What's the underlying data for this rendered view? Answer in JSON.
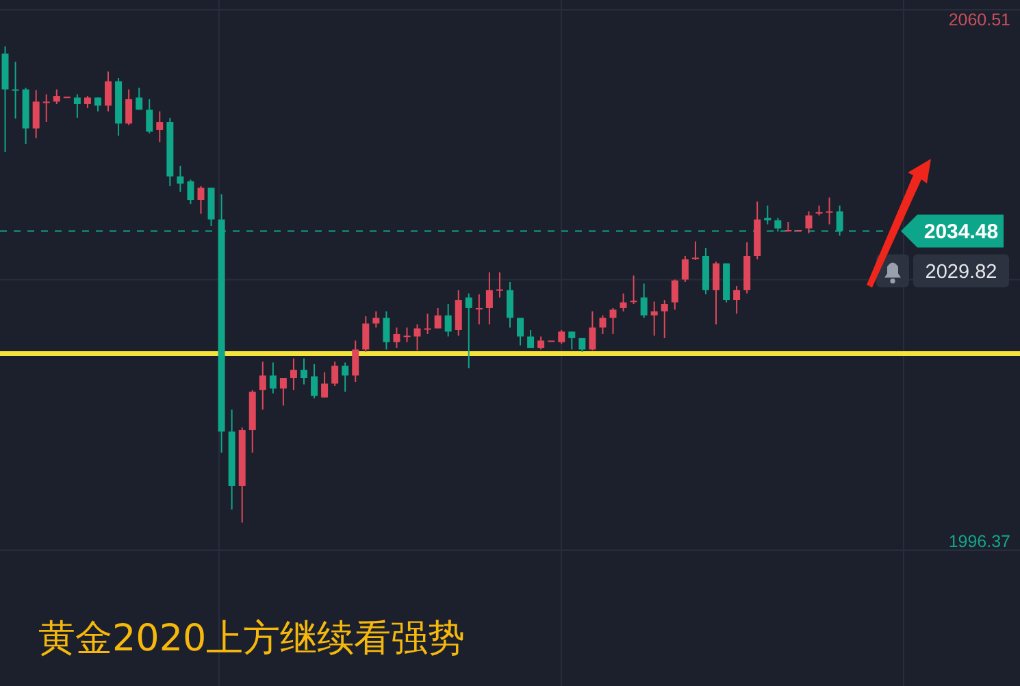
{
  "chart_data": {
    "type": "candlestick",
    "title": "黄金2020上方继续看强势",
    "categories": [
      null,
      null,
      null,
      null,
      null,
      null,
      null,
      null,
      null,
      null,
      null,
      null,
      null,
      null,
      null,
      null,
      null,
      null,
      null,
      null,
      null,
      null,
      null,
      null,
      null,
      null,
      null,
      null,
      null,
      null,
      null,
      null,
      null,
      null,
      null,
      null,
      null,
      null,
      null,
      null,
      null,
      null,
      null,
      null,
      null,
      null,
      null,
      null,
      null,
      null,
      null,
      null,
      null,
      null,
      null,
      null,
      null,
      null,
      null,
      null,
      null,
      null,
      null,
      null,
      null,
      null,
      null,
      null,
      null,
      null,
      null,
      null,
      null,
      null,
      null,
      null,
      null,
      null,
      null,
      null,
      null,
      null,
      null,
      null,
      null,
      null,
      null,
      null,
      null,
      null,
      null,
      null,
      null,
      null,
      null,
      null,
      null,
      null,
      null
    ],
    "ohlc": [
      [
        2056.3,
        2057.2,
        2044.2,
        2051.9
      ],
      [
        2051.9,
        2055.3,
        2048.3,
        2051.8
      ],
      [
        2051.9,
        2052.1,
        2045.2,
        2047.1
      ],
      [
        2047.1,
        2051.8,
        2045.9,
        2050.4
      ],
      [
        2050.3,
        2051.3,
        2047.9,
        2050.4
      ],
      [
        2050.4,
        2051.9,
        2050.1,
        2051.1
      ],
      [
        2051.0,
        2051.0,
        2051.0,
        2051.0
      ],
      [
        2050.9,
        2051.3,
        2048.4,
        2050.1
      ],
      [
        2050.1,
        2051.1,
        2049.6,
        2050.9
      ],
      [
        2050.9,
        2050.9,
        2049.2,
        2049.9
      ],
      [
        2049.9,
        2054.1,
        2049.2,
        2052.9
      ],
      [
        2052.9,
        2053.3,
        2046.2,
        2047.7
      ],
      [
        2047.7,
        2051.9,
        2047.5,
        2050.7
      ],
      [
        2050.9,
        2052.1,
        2049.4,
        2049.4
      ],
      [
        2049.4,
        2050.7,
        2046.5,
        2046.7
      ],
      [
        2046.9,
        2049.2,
        2045.4,
        2047.9
      ],
      [
        2047.9,
        2048.4,
        2040.0,
        2041.2
      ],
      [
        2041.2,
        2042.5,
        2039.3,
        2040.3
      ],
      [
        2040.6,
        2040.8,
        2037.8,
        2038.3
      ],
      [
        2038.3,
        2040.0,
        2036.6,
        2039.8
      ],
      [
        2039.8,
        2039.8,
        2035.1,
        2035.9
      ],
      [
        2035.9,
        2039.0,
        2007.2,
        2009.8
      ],
      [
        2009.8,
        2012.5,
        2000.2,
        2003.1
      ],
      [
        2003.1,
        2010.3,
        1998.6,
        2010.0
      ],
      [
        2010.0,
        2014.9,
        2007.2,
        2014.7
      ],
      [
        2014.9,
        2018.4,
        2012.5,
        2016.7
      ],
      [
        2016.7,
        2018.3,
        2014.5,
        2015.1
      ],
      [
        2015.1,
        2016.4,
        2013.0,
        2016.4
      ],
      [
        2016.4,
        2018.8,
        2014.9,
        2017.4
      ],
      [
        2017.4,
        2018.8,
        2015.6,
        2016.4
      ],
      [
        2016.6,
        2018.1,
        2013.9,
        2014.2
      ],
      [
        2014.0,
        2017.1,
        2014.0,
        2015.7
      ],
      [
        2015.7,
        2018.4,
        2015.4,
        2017.9
      ],
      [
        2017.9,
        2018.3,
        2014.7,
        2016.7
      ],
      [
        2016.7,
        2021.0,
        2015.9,
        2019.9
      ],
      [
        2019.9,
        2024.0,
        2019.6,
        2023.1
      ],
      [
        2023.1,
        2024.6,
        2022.6,
        2023.8
      ],
      [
        2023.8,
        2024.6,
        2019.9,
        2020.8
      ],
      [
        2020.8,
        2022.6,
        2020.1,
        2021.8
      ],
      [
        2021.6,
        2022.6,
        2020.8,
        2021.6
      ],
      [
        2021.5,
        2023.0,
        2019.8,
        2022.5
      ],
      [
        2022.5,
        2024.3,
        2021.8,
        2022.5
      ],
      [
        2022.5,
        2025.0,
        2022.5,
        2024.1
      ],
      [
        2024.1,
        2025.5,
        2021.5,
        2022.1
      ],
      [
        2022.3,
        2027.2,
        2021.6,
        2026.0
      ],
      [
        2026.3,
        2026.8,
        2017.6,
        2025.0
      ],
      [
        2025.0,
        2026.7,
        2023.0,
        2025.0
      ],
      [
        2025.0,
        2029.4,
        2023.0,
        2027.2
      ],
      [
        2027.3,
        2029.4,
        2026.3,
        2027.3
      ],
      [
        2027.2,
        2028.2,
        2022.6,
        2023.8
      ],
      [
        2023.8,
        2023.8,
        2020.4,
        2021.5
      ],
      [
        2021.5,
        2022.3,
        2020.1,
        2020.1
      ],
      [
        2020.1,
        2021.5,
        2019.9,
        2021.0
      ],
      [
        2021.0,
        2021.0,
        2021.0,
        2021.0
      ],
      [
        2020.8,
        2022.3,
        2020.6,
        2022.1
      ],
      [
        2022.1,
        2022.1,
        2019.9,
        2021.3
      ],
      [
        2021.3,
        2021.3,
        2019.6,
        2019.9
      ],
      [
        2019.9,
        2024.6,
        2019.8,
        2022.6
      ],
      [
        2022.6,
        2024.1,
        2021.8,
        2023.8
      ],
      [
        2023.8,
        2025.0,
        2021.8,
        2024.8
      ],
      [
        2025.0,
        2026.8,
        2024.6,
        2025.7
      ],
      [
        2025.8,
        2029.0,
        2025.5,
        2025.9
      ],
      [
        2026.3,
        2028.0,
        2023.8,
        2024.1
      ],
      [
        2024.1,
        2025.8,
        2021.6,
        2024.6
      ],
      [
        2024.6,
        2026.0,
        2021.3,
        2025.5
      ],
      [
        2025.7,
        2028.5,
        2024.8,
        2028.4
      ],
      [
        2028.5,
        2031.4,
        2028.2,
        2031.0
      ],
      [
        2031.2,
        2033.2,
        2030.9,
        2031.2
      ],
      [
        2031.4,
        2032.4,
        2026.7,
        2027.2
      ],
      [
        2027.2,
        2030.7,
        2023.0,
        2030.5
      ],
      [
        2030.5,
        2030.5,
        2025.7,
        2026.0
      ],
      [
        2026.0,
        2027.7,
        2024.3,
        2027.2
      ],
      [
        2027.2,
        2033.1,
        2026.8,
        2031.4
      ],
      [
        2031.4,
        2038.1,
        2031.0,
        2035.9
      ],
      [
        2036.1,
        2037.6,
        2035.3,
        2035.8
      ],
      [
        2035.8,
        2036.1,
        2034.4,
        2034.8
      ],
      [
        2034.5,
        2035.6,
        2034.4,
        2034.6
      ],
      [
        2034.5,
        2034.6,
        2034.5,
        2034.6
      ],
      [
        2034.8,
        2036.9,
        2034.2,
        2036.4
      ],
      [
        2036.7,
        2037.6,
        2036.4,
        2036.8
      ],
      [
        2036.8,
        2038.6,
        2035.3,
        2036.9
      ],
      [
        2036.9,
        2037.6,
        2033.9,
        2034.48
      ],
      null,
      null,
      null,
      null,
      null,
      null,
      null,
      null,
      null,
      null,
      null,
      null,
      null,
      null,
      null,
      null,
      null
    ],
    "ylim": [
      1978.5,
      2062.9
    ],
    "yticks": [
      2060.51,
      1996.37,
      {
        "value": 2061.7,
        "label": null
      },
      {
        "value": 2028.5,
        "label": null
      },
      {
        "value": 1995.2,
        "label": null
      }
    ],
    "tick_labels": "y",
    "grid": "y",
    "ref_lines": [
      {
        "axis": "y",
        "value": 2019.4,
        "color": "#f3e33a"
      },
      {
        "axis": "y",
        "value": 2034.48,
        "label": "2034.48",
        "color": "#0ea68a",
        "line_style": "dashed"
      }
    ],
    "annotations": [
      "2029.82"
    ]
  }
}
